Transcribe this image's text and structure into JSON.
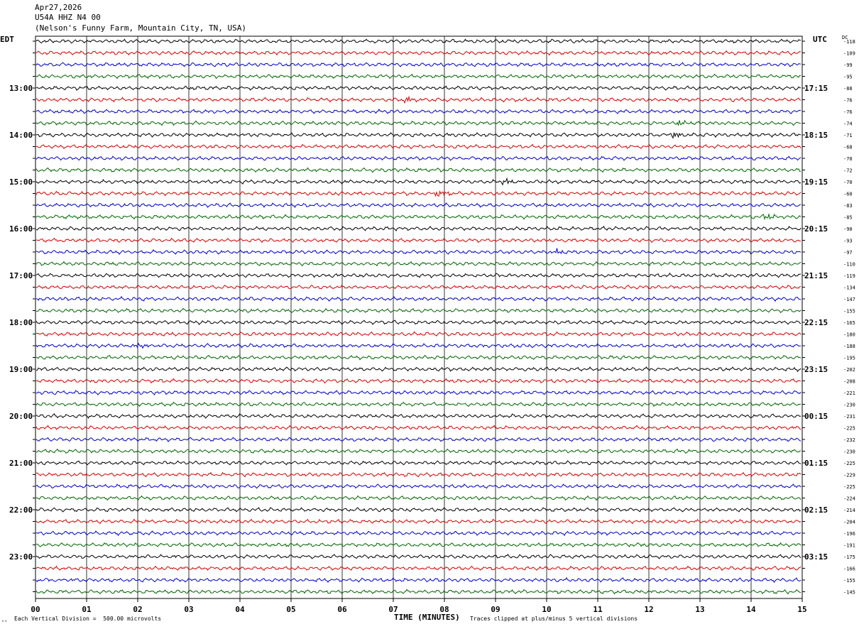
{
  "header": {
    "date": "Apr27,2026",
    "station": "U54A HHZ N4 00",
    "location": "(Nelson's Funny Farm, Mountain City, TN, USA)"
  },
  "labels": {
    "left_tz": "EDT",
    "right_tz": "UTC",
    "dc": "DC"
  },
  "footer": {
    "mark": "ᵥᵥ",
    "division": "Each Vertical Division =  500.00 microvolts",
    "x_title": "TIME (MINUTES)",
    "clip_note": "Traces clipped at plus/minus 5 vertical divisions"
  },
  "colors": {
    "trace_cycle": [
      "#000000",
      "#d40000",
      "#0000c8",
      "#006400"
    ],
    "grid": "#000000",
    "background": "#ffffff"
  },
  "chart_data": {
    "type": "line",
    "title": "",
    "xlabel": "TIME (MINUTES)",
    "ylabel": "",
    "x_ticks": [
      "00",
      "01",
      "02",
      "03",
      "04",
      "05",
      "06",
      "07",
      "08",
      "09",
      "10",
      "11",
      "12",
      "13",
      "14",
      "15"
    ],
    "xlim": [
      0,
      15
    ],
    "rows_per_hour": 4,
    "row_minutes": 15,
    "left_hour_labels": [
      "13:00",
      "14:00",
      "15:00",
      "16:00",
      "17:00",
      "18:00",
      "19:00",
      "20:00",
      "21:00",
      "22:00",
      "23:00"
    ],
    "right_hour_labels": [
      "17:15",
      "18:15",
      "19:15",
      "20:15",
      "21:15",
      "22:15",
      "23:15",
      "00:15",
      "01:15",
      "02:15",
      "03:15"
    ],
    "dc_offsets": [
      -118,
      -109,
      -99,
      -95,
      -88,
      -76,
      -76,
      -74,
      -71,
      -68,
      -70,
      -72,
      -70,
      -60,
      -83,
      -85,
      -90,
      -93,
      -97,
      -110,
      -119,
      -134,
      -147,
      -155,
      -165,
      -180,
      -188,
      -195,
      -202,
      -208,
      -221,
      -230,
      -231,
      -225,
      -232,
      -230,
      -225,
      -229,
      -225,
      -224,
      -214,
      -204,
      -196,
      -191,
      -175,
      -166,
      -155,
      -145
    ],
    "events": [
      {
        "row": 8,
        "minute": 12.5
      },
      {
        "row": 7,
        "minute": 12.6
      },
      {
        "row": 13,
        "minute": 7.9
      },
      {
        "row": 12,
        "minute": 9.2
      },
      {
        "row": 15,
        "minute": 14.3
      },
      {
        "row": 18,
        "minute": 10.2
      },
      {
        "row": 26,
        "minute": 2.0
      },
      {
        "row": 5,
        "minute": 7.3
      }
    ]
  }
}
